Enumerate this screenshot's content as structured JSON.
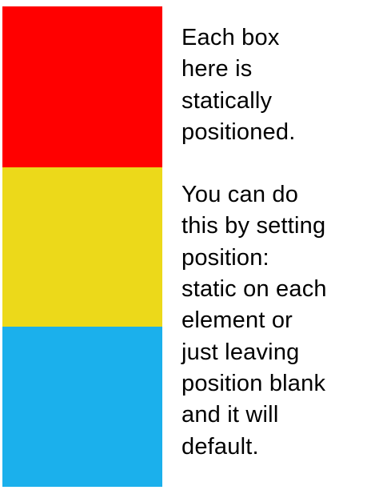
{
  "colors": {
    "red_box": "#ff0000",
    "yellow_box": "#ecd91a",
    "blue_box": "#1bb0ec"
  },
  "paragraph1": {
    "lines": [
      "Each box",
      "here is",
      "statically",
      "positioned."
    ]
  },
  "paragraph2": {
    "lines": [
      "You can do",
      "this by setting",
      "position:",
      "static on each",
      "element or",
      "just leaving",
      "position blank",
      "and it will",
      "default."
    ]
  }
}
